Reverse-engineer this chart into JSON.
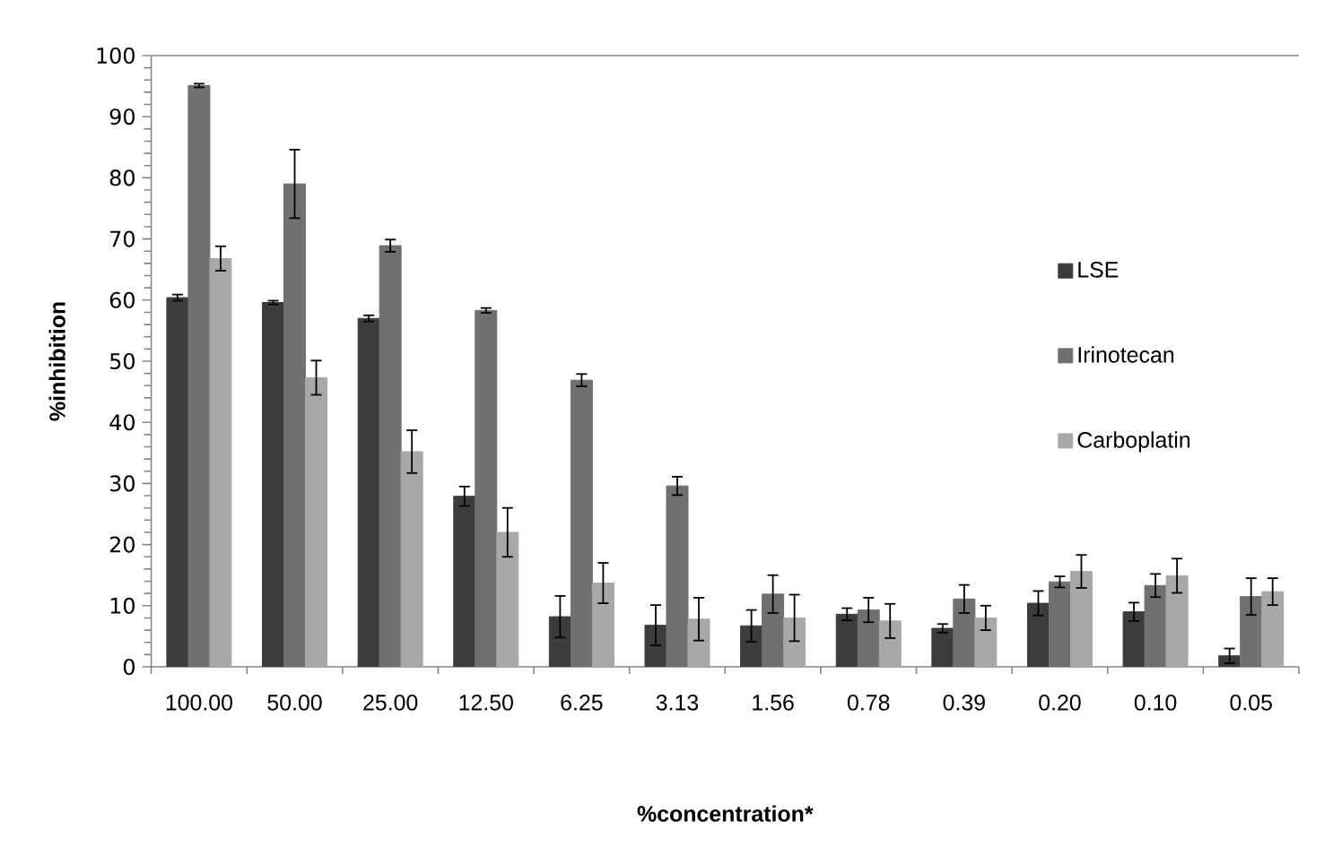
{
  "chart_data": {
    "type": "bar",
    "xlabel": "%concentration*",
    "ylabel": "%inhibition",
    "categories": [
      "100.00",
      "50.00",
      "25.00",
      "12.50",
      "6.25",
      "3.13",
      "1.56",
      "0.78",
      "0.39",
      "0.20",
      "0.10",
      "0.05"
    ],
    "ylim": [
      0,
      100
    ],
    "yticks": [
      0,
      {
        "value": 2,
        "label": null
      },
      {
        "value": 4,
        "label": null
      },
      {
        "value": 6,
        "label": null
      },
      {
        "value": 8,
        "label": null
      },
      10,
      {
        "value": 12,
        "label": null
      },
      {
        "value": 14,
        "label": null
      },
      {
        "value": 16,
        "label": null
      },
      {
        "value": 18,
        "label": null
      },
      20,
      {
        "value": 22,
        "label": null
      },
      {
        "value": 24,
        "label": null
      },
      {
        "value": 26,
        "label": null
      },
      {
        "value": 28,
        "label": null
      },
      30,
      {
        "value": 32,
        "label": null
      },
      {
        "value": 34,
        "label": null
      },
      {
        "value": 36,
        "label": null
      },
      {
        "value": 38,
        "label": null
      },
      40,
      {
        "value": 42,
        "label": null
      },
      {
        "value": 44,
        "label": null
      },
      {
        "value": 46,
        "label": null
      },
      {
        "value": 48,
        "label": null
      },
      50,
      {
        "value": 52,
        "label": null
      },
      {
        "value": 54,
        "label": null
      },
      {
        "value": 56,
        "label": null
      },
      {
        "value": 58,
        "label": null
      },
      60,
      {
        "value": 62,
        "label": null
      },
      {
        "value": 64,
        "label": null
      },
      {
        "value": 66,
        "label": null
      },
      {
        "value": 68,
        "label": null
      },
      70,
      {
        "value": 72,
        "label": null
      },
      {
        "value": 74,
        "label": null
      },
      {
        "value": 76,
        "label": null
      },
      {
        "value": 78,
        "label": null
      },
      80,
      {
        "value": 82,
        "label": null
      },
      {
        "value": 84,
        "label": null
      },
      {
        "value": 86,
        "label": null
      },
      {
        "value": 88,
        "label": null
      },
      90,
      {
        "value": 92,
        "label": null
      },
      {
        "value": 94,
        "label": null
      },
      {
        "value": 96,
        "label": null
      },
      {
        "value": 98,
        "label": null
      },
      100
    ],
    "legend": "top right",
    "series": [
      {
        "name": "LSE",
        "color": "#3c3c3c",
        "values": [
          60.4,
          59.6,
          57.0,
          27.9,
          8.2,
          6.8,
          6.7,
          8.6,
          6.3,
          10.4,
          9.0,
          1.8
        ],
        "errors": [
          0.5,
          0.3,
          0.5,
          1.6,
          3.4,
          3.3,
          2.6,
          1.0,
          0.7,
          2.0,
          1.5,
          1.2
        ]
      },
      {
        "name": "Irinotecan",
        "color": "#707070",
        "values": [
          95.1,
          79.0,
          68.9,
          58.3,
          46.9,
          29.6,
          11.9,
          9.3,
          11.1,
          13.9,
          13.3,
          11.5
        ],
        "errors": [
          0.3,
          5.6,
          1.0,
          0.4,
          1.0,
          1.5,
          3.1,
          2.0,
          2.3,
          0.9,
          1.9,
          3.0
        ]
      },
      {
        "name": "Carboplatin",
        "color": "#a8a8a8",
        "values": [
          66.8,
          47.3,
          35.2,
          22.0,
          13.7,
          7.8,
          8.0,
          7.5,
          8.0,
          15.6,
          14.9,
          12.3
        ],
        "errors": [
          2.0,
          2.8,
          3.5,
          4.0,
          3.3,
          3.5,
          3.8,
          2.8,
          2.0,
          2.7,
          2.8,
          2.2
        ]
      }
    ]
  }
}
